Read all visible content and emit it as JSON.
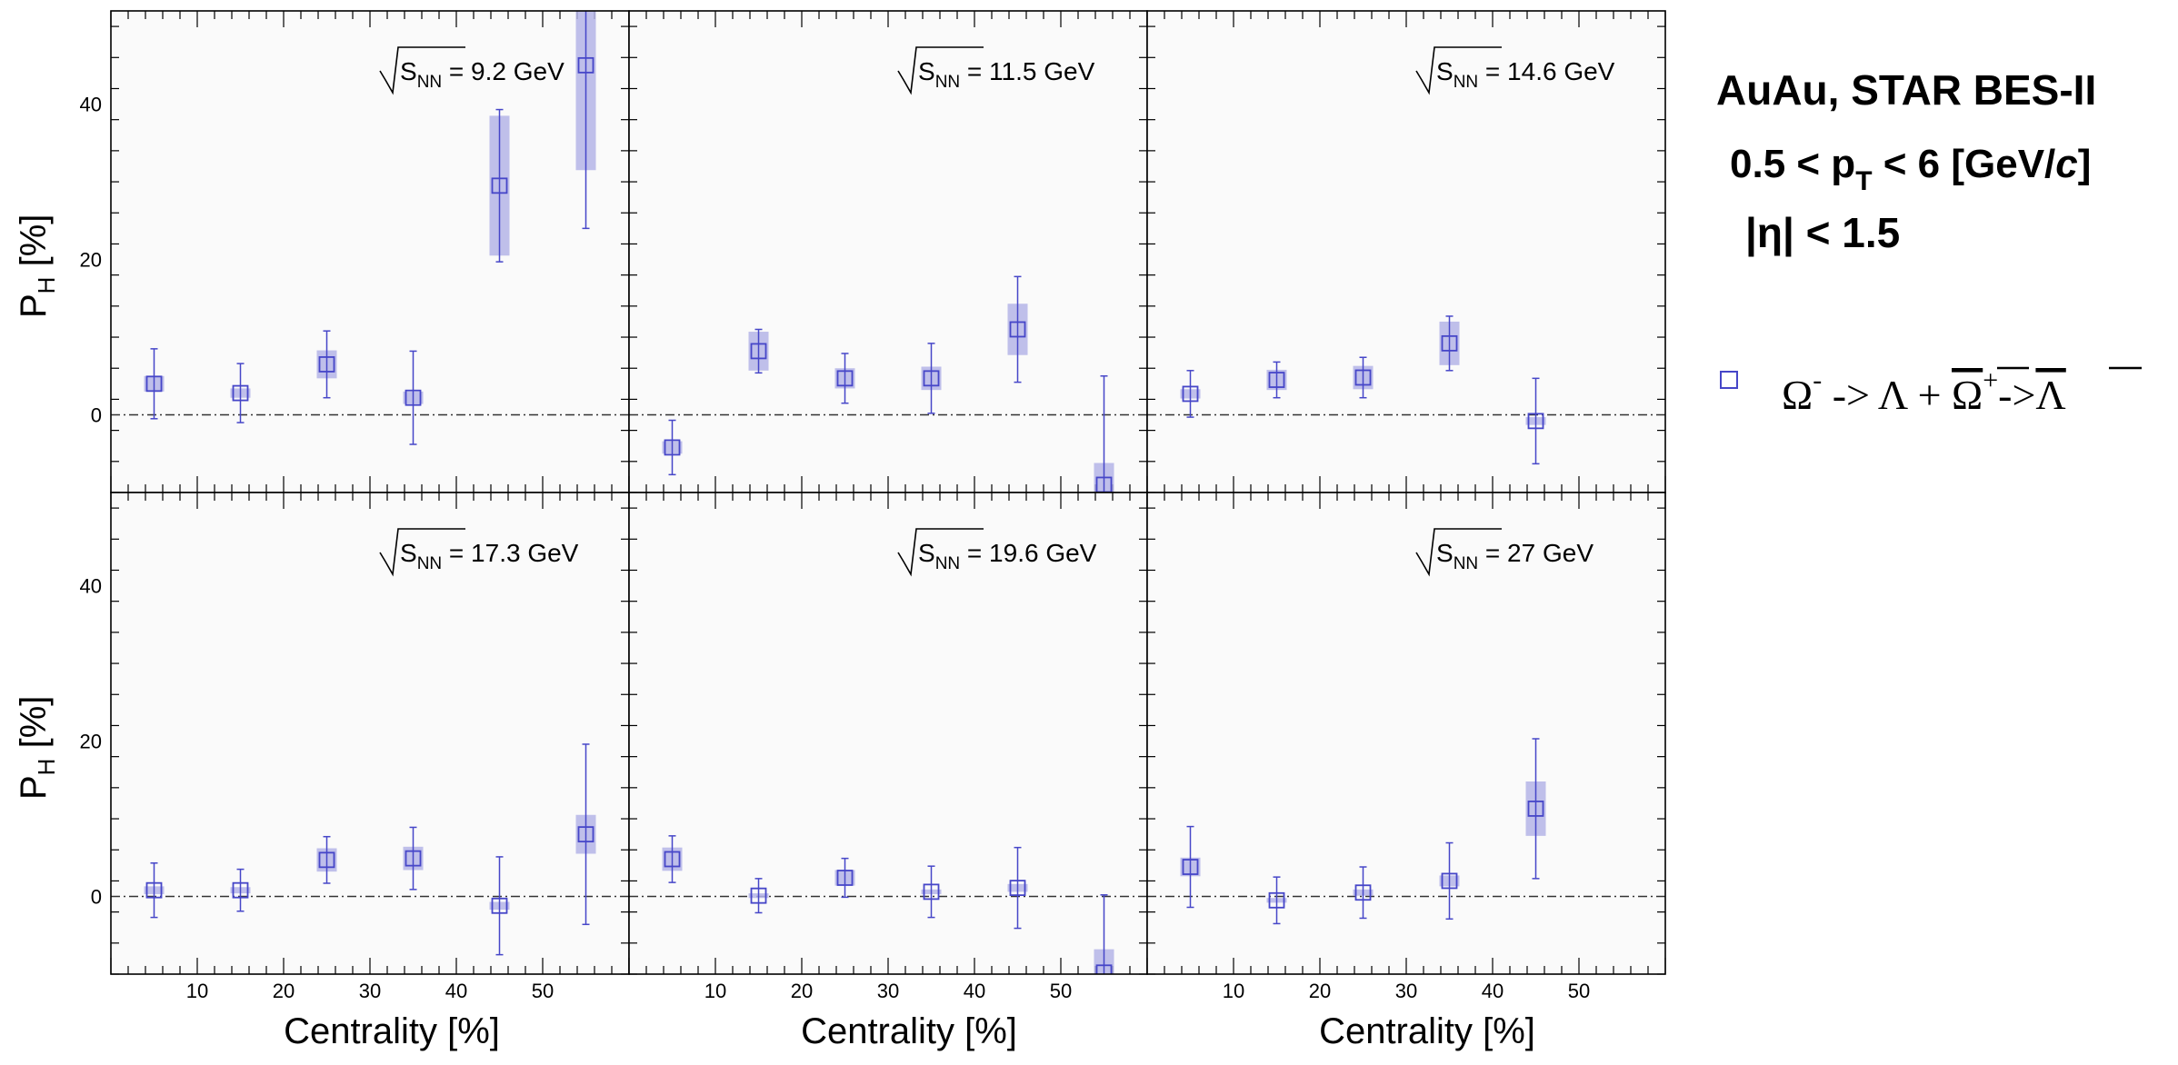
{
  "figure": {
    "ylabel_main": "P",
    "ylabel_sub": "H",
    "ylabel_unit": " [%]",
    "xlabel": "Centrality [%]",
    "energy_prefix_sub": "NN",
    "energy_s": "S",
    "info": {
      "system": "AuAu, STAR BES-II",
      "pt_a": "0.5 < p",
      "pt_sub": "T",
      "pt_b": " < 6 [GeV/",
      "pt_c": "c",
      "pt_d": "]",
      "eta": "|η| < 1.5"
    },
    "legend": {
      "omega": "Ω",
      "minus": "-",
      "arrow1": " -> ",
      "lambda": "Λ",
      "plus_sep": " + ",
      "omegabar": "Ω",
      "plus": "+",
      "arrow2": "->",
      "lambdabar": "Λ"
    },
    "colors": {
      "marker": "#4646c8",
      "syst_box": "#b4b4e6",
      "frame_bg": "#fafafa",
      "zero_line": "#333333"
    },
    "y_ticks": [
      "40",
      "20",
      "0"
    ],
    "x_ticks": [
      "10",
      "20",
      "30",
      "40",
      "50"
    ]
  },
  "chart_data": [
    {
      "type": "scatter",
      "energy": "= 9.2 GeV",
      "xlim": [
        0,
        60
      ],
      "ylim": [
        -10,
        52
      ],
      "points": [
        {
          "x": 5,
          "y": 4.0,
          "stat": 4.5,
          "sys": 1.0
        },
        {
          "x": 15,
          "y": 2.8,
          "stat": 3.8,
          "sys": 0.6
        },
        {
          "x": 25,
          "y": 6.5,
          "stat": 4.3,
          "sys": 1.8
        },
        {
          "x": 35,
          "y": 2.2,
          "stat": 6.0,
          "sys": 0.8
        },
        {
          "x": 45,
          "y": 29.5,
          "stat": 9.8,
          "sys": 9.0
        },
        {
          "x": 55,
          "y": 45.0,
          "stat": 21.0,
          "sys": 13.5
        }
      ]
    },
    {
      "type": "scatter",
      "energy": "= 11.5 GeV",
      "xlim": [
        0,
        60
      ],
      "ylim": [
        -10,
        52
      ],
      "points": [
        {
          "x": 5,
          "y": -4.2,
          "stat": 3.5,
          "sys": 0.8
        },
        {
          "x": 15,
          "y": 8.2,
          "stat": 2.8,
          "sys": 2.5
        },
        {
          "x": 25,
          "y": 4.7,
          "stat": 3.2,
          "sys": 1.3
        },
        {
          "x": 35,
          "y": 4.7,
          "stat": 4.5,
          "sys": 1.5
        },
        {
          "x": 45,
          "y": 11.0,
          "stat": 6.8,
          "sys": 3.3
        },
        {
          "x": 55,
          "y": -9.0,
          "stat": 14.0,
          "sys": 2.8
        }
      ]
    },
    {
      "type": "scatter",
      "energy": "= 14.6 GeV",
      "xlim": [
        0,
        60
      ],
      "ylim": [
        -10,
        52
      ],
      "points": [
        {
          "x": 5,
          "y": 2.7,
          "stat": 3.0,
          "sys": 0.6
        },
        {
          "x": 15,
          "y": 4.5,
          "stat": 2.3,
          "sys": 1.3
        },
        {
          "x": 25,
          "y": 4.8,
          "stat": 2.6,
          "sys": 1.5
        },
        {
          "x": 35,
          "y": 9.2,
          "stat": 3.5,
          "sys": 2.8
        },
        {
          "x": 45,
          "y": -0.8,
          "stat": 5.5,
          "sys": 0.5
        }
      ]
    },
    {
      "type": "scatter",
      "energy": "= 17.3 GeV",
      "xlim": [
        0,
        60
      ],
      "ylim": [
        -10,
        52
      ],
      "points": [
        {
          "x": 5,
          "y": 0.8,
          "stat": 3.5,
          "sys": 0.5
        },
        {
          "x": 15,
          "y": 0.8,
          "stat": 2.7,
          "sys": 0.4
        },
        {
          "x": 25,
          "y": 4.7,
          "stat": 3.0,
          "sys": 1.5
        },
        {
          "x": 35,
          "y": 4.9,
          "stat": 4.0,
          "sys": 1.5
        },
        {
          "x": 45,
          "y": -1.2,
          "stat": 6.3,
          "sys": 0.5
        },
        {
          "x": 55,
          "y": 8.0,
          "stat": 11.6,
          "sys": 2.5
        }
      ]
    },
    {
      "type": "scatter",
      "energy": "= 19.6 GeV",
      "xlim": [
        0,
        60
      ],
      "ylim": [
        -10,
        52
      ],
      "points": [
        {
          "x": 5,
          "y": 4.8,
          "stat": 3.0,
          "sys": 1.5
        },
        {
          "x": 15,
          "y": 0.1,
          "stat": 2.2,
          "sys": 0.3
        },
        {
          "x": 25,
          "y": 2.4,
          "stat": 2.5,
          "sys": 1.0
        },
        {
          "x": 35,
          "y": 0.6,
          "stat": 3.3,
          "sys": 0.3
        },
        {
          "x": 45,
          "y": 1.1,
          "stat": 5.2,
          "sys": 0.5
        },
        {
          "x": 55,
          "y": -9.8,
          "stat": 10.0,
          "sys": 3.0
        }
      ]
    },
    {
      "type": "scatter",
      "energy": "= 27 GeV",
      "xlim": [
        0,
        60
      ],
      "ylim": [
        -10,
        52
      ],
      "points": [
        {
          "x": 5,
          "y": 3.8,
          "stat": 5.2,
          "sys": 1.2
        },
        {
          "x": 15,
          "y": -0.5,
          "stat": 3.0,
          "sys": 0.3
        },
        {
          "x": 25,
          "y": 0.5,
          "stat": 3.3,
          "sys": 0.4
        },
        {
          "x": 35,
          "y": 2.0,
          "stat": 4.9,
          "sys": 0.7
        },
        {
          "x": 45,
          "y": 11.3,
          "stat": 9.0,
          "sys": 3.5
        }
      ]
    }
  ]
}
